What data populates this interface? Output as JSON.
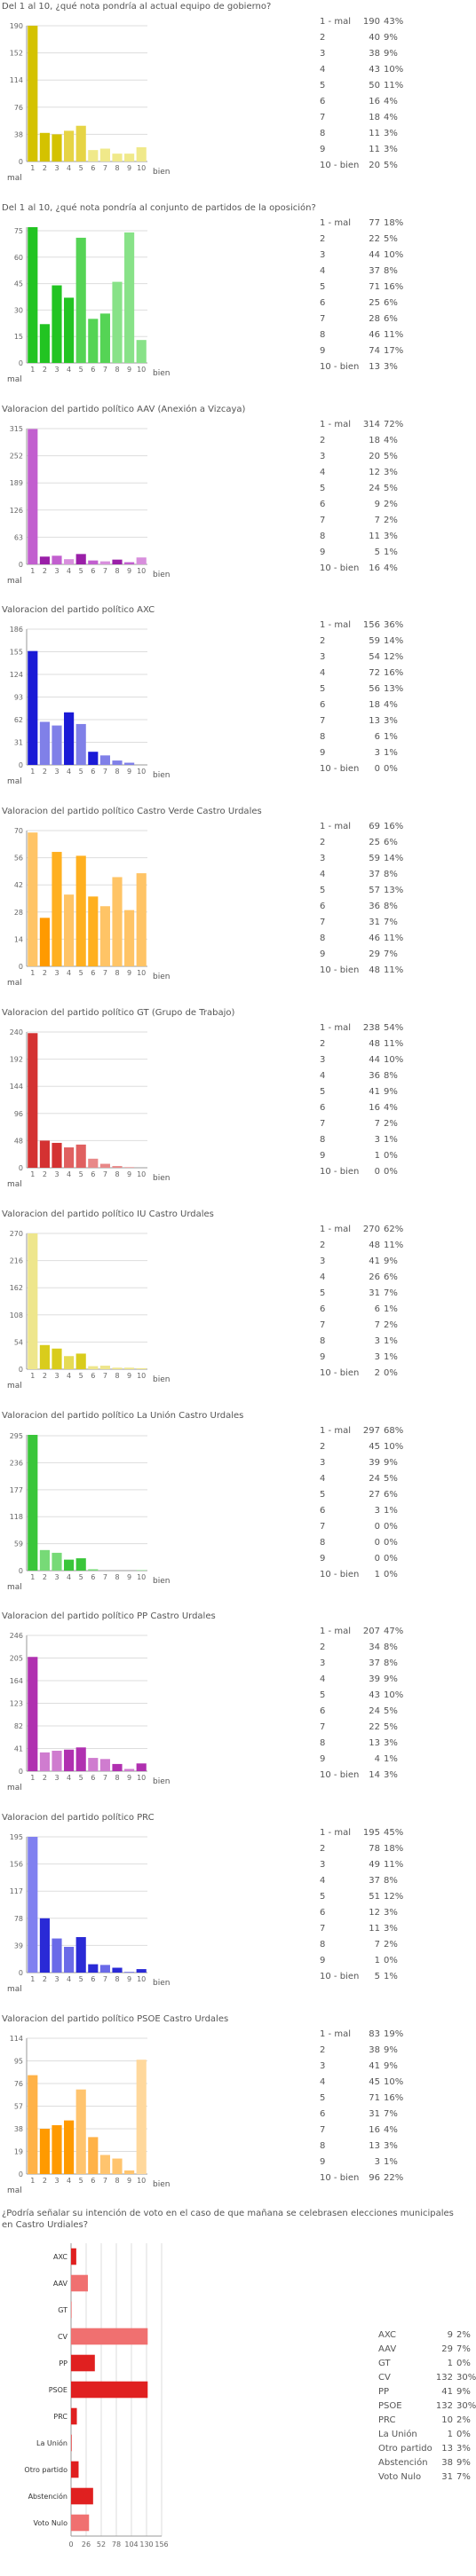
{
  "common": {
    "mal_label": "mal",
    "bien_label": "bien",
    "stat_labels": [
      "1 -  mal",
      "2",
      "3",
      "4",
      "5",
      "6",
      "7",
      "8",
      "9",
      "10 - bien"
    ]
  },
  "chart_data": [
    {
      "type": "bar",
      "title": "Del 1 al 10, ¿qué nota pondría al actual equipo de gobierno?",
      "categories": [
        "1",
        "2",
        "3",
        "4",
        "5",
        "6",
        "7",
        "8",
        "9",
        "10"
      ],
      "values": [
        190,
        40,
        38,
        43,
        50,
        16,
        18,
        11,
        11,
        20
      ],
      "percents": [
        "43%",
        "9%",
        "9%",
        "10%",
        "11%",
        "4%",
        "4%",
        "3%",
        "3%",
        "5%"
      ],
      "yticks": [
        0,
        38,
        76,
        114,
        152,
        190
      ],
      "ylim": [
        0,
        190
      ],
      "colors": [
        "#d4c200",
        "#d4c200",
        "#d4c200",
        "#e6d445",
        "#e6d445",
        "#f0e98a",
        "#f0e98a",
        "#f0e98a",
        "#f0e98a",
        "#f0e98a"
      ]
    },
    {
      "type": "bar",
      "title": "Del 1 al 10, ¿qué nota pondría al conjunto de partidos de la oposición?",
      "categories": [
        "1",
        "2",
        "3",
        "4",
        "5",
        "6",
        "7",
        "8",
        "9",
        "10"
      ],
      "values": [
        77,
        22,
        44,
        37,
        71,
        25,
        28,
        46,
        74,
        13
      ],
      "percents": [
        "18%",
        "5%",
        "10%",
        "8%",
        "16%",
        "6%",
        "6%",
        "11%",
        "17%",
        "3%"
      ],
      "yticks": [
        0,
        15,
        30,
        45,
        60,
        75
      ],
      "ylim": [
        0,
        77
      ],
      "colors": [
        "#22c422",
        "#22c422",
        "#22c422",
        "#22c422",
        "#55d455",
        "#55d455",
        "#55d455",
        "#88e288",
        "#88e288",
        "#88e288"
      ]
    },
    {
      "type": "bar",
      "title": "Valoracion del partido político AAV (Anexión a Vizcaya)",
      "categories": [
        "1",
        "2",
        "3",
        "4",
        "5",
        "6",
        "7",
        "8",
        "9",
        "10"
      ],
      "values": [
        314,
        18,
        20,
        12,
        24,
        9,
        7,
        11,
        5,
        16
      ],
      "percents": [
        "72%",
        "4%",
        "5%",
        "3%",
        "5%",
        "2%",
        "2%",
        "3%",
        "1%",
        "4%"
      ],
      "yticks": [
        0,
        63,
        126,
        189,
        252,
        315
      ],
      "ylim": [
        0,
        315
      ],
      "colors": [
        "#c25fcf",
        "#9a1fa8",
        "#c25fcf",
        "#d88fdd",
        "#9a1fa8",
        "#c25fcf",
        "#d88fdd",
        "#9a1fa8",
        "#c25fcf",
        "#d88fdd"
      ]
    },
    {
      "type": "bar",
      "title": "Valoracion del partido político AXC",
      "categories": [
        "1",
        "2",
        "3",
        "4",
        "5",
        "6",
        "7",
        "8",
        "9",
        "10"
      ],
      "values": [
        156,
        59,
        54,
        72,
        56,
        18,
        13,
        6,
        3,
        0
      ],
      "percents": [
        "36%",
        "14%",
        "12%",
        "16%",
        "13%",
        "4%",
        "3%",
        "1%",
        "1%",
        "0%"
      ],
      "yticks": [
        0,
        31,
        62,
        93,
        124,
        155,
        186
      ],
      "ylim": [
        0,
        186
      ],
      "colors": [
        "#1a1ad6",
        "#8080e8",
        "#8080e8",
        "#1a1ad6",
        "#8080e8",
        "#1a1ad6",
        "#8080e8",
        "#8080e8",
        "#8080e8",
        "#8080e8"
      ]
    },
    {
      "type": "bar",
      "title": "Valoracion del partido político Castro Verde Castro Urdales",
      "categories": [
        "1",
        "2",
        "3",
        "4",
        "5",
        "6",
        "7",
        "8",
        "9",
        "10"
      ],
      "values": [
        69,
        25,
        59,
        37,
        57,
        36,
        31,
        46,
        29,
        48
      ],
      "percents": [
        "16%",
        "6%",
        "14%",
        "8%",
        "13%",
        "8%",
        "7%",
        "11%",
        "7%",
        "11%"
      ],
      "yticks": [
        0,
        14,
        28,
        42,
        56,
        70
      ],
      "ylim": [
        0,
        70
      ],
      "colors": [
        "#ffc466",
        "#ff9a00",
        "#ffb020",
        "#ffc466",
        "#ffb020",
        "#ffb020",
        "#ffc466",
        "#ffc466",
        "#ffc466",
        "#ffc466"
      ]
    },
    {
      "type": "bar",
      "title": "Valoracion del partido político GT (Grupo de Trabajo)",
      "categories": [
        "1",
        "2",
        "3",
        "4",
        "5",
        "6",
        "7",
        "8",
        "9",
        "10"
      ],
      "values": [
        238,
        48,
        44,
        36,
        41,
        16,
        7,
        3,
        1,
        0
      ],
      "percents": [
        "54%",
        "11%",
        "10%",
        "8%",
        "9%",
        "4%",
        "2%",
        "1%",
        "0%",
        "0%"
      ],
      "yticks": [
        0,
        48,
        96,
        144,
        192,
        240
      ],
      "ylim": [
        0,
        240
      ],
      "colors": [
        "#d43232",
        "#d43232",
        "#d43232",
        "#e06060",
        "#e06060",
        "#e88888",
        "#e88888",
        "#e88888",
        "#e88888",
        "#e88888"
      ]
    },
    {
      "type": "bar",
      "title": "Valoracion del partido político IU Castro Urdales",
      "categories": [
        "1",
        "2",
        "3",
        "4",
        "5",
        "6",
        "7",
        "8",
        "9",
        "10"
      ],
      "values": [
        270,
        48,
        41,
        26,
        31,
        6,
        7,
        3,
        3,
        2
      ],
      "percents": [
        "62%",
        "11%",
        "9%",
        "6%",
        "7%",
        "1%",
        "2%",
        "1%",
        "1%",
        "0%"
      ],
      "yticks": [
        0,
        54,
        108,
        162,
        216,
        270
      ],
      "ylim": [
        0,
        270
      ],
      "colors": [
        "#eee68c",
        "#d9cc1c",
        "#d9cc1c",
        "#e6db55",
        "#d9cc1c",
        "#eee68c",
        "#eee68c",
        "#eee68c",
        "#eee68c",
        "#eee68c"
      ]
    },
    {
      "type": "bar",
      "title": "Valoracion del partido político La Unión Castro Urdales",
      "categories": [
        "1",
        "2",
        "3",
        "4",
        "5",
        "6",
        "7",
        "8",
        "9",
        "10"
      ],
      "values": [
        297,
        45,
        39,
        24,
        27,
        3,
        0,
        0,
        0,
        1
      ],
      "percents": [
        "68%",
        "10%",
        "9%",
        "5%",
        "6%",
        "1%",
        "0%",
        "0%",
        "0%",
        "0%"
      ],
      "yticks": [
        0,
        59,
        118,
        177,
        236,
        295
      ],
      "ylim": [
        0,
        297
      ],
      "colors": [
        "#3ac63a",
        "#77da77",
        "#77da77",
        "#3ac63a",
        "#3ac63a",
        "#77da77",
        "#77da77",
        "#77da77",
        "#77da77",
        "#77da77"
      ]
    },
    {
      "type": "bar",
      "title": "Valoracion del partido político PP Castro Urdales",
      "categories": [
        "1",
        "2",
        "3",
        "4",
        "5",
        "6",
        "7",
        "8",
        "9",
        "10"
      ],
      "values": [
        207,
        34,
        37,
        39,
        43,
        24,
        22,
        13,
        4,
        14
      ],
      "percents": [
        "47%",
        "8%",
        "8%",
        "9%",
        "10%",
        "5%",
        "5%",
        "3%",
        "1%",
        "3%"
      ],
      "yticks": [
        0,
        41,
        82,
        123,
        164,
        205,
        246
      ],
      "ylim": [
        0,
        246
      ],
      "colors": [
        "#b030b0",
        "#cf7ccf",
        "#cf7ccf",
        "#b030b0",
        "#b030b0",
        "#cf7ccf",
        "#cf7ccf",
        "#b030b0",
        "#cf7ccf",
        "#b030b0"
      ]
    },
    {
      "type": "bar",
      "title": "Valoracion del partido político PRC",
      "categories": [
        "1",
        "2",
        "3",
        "4",
        "5",
        "6",
        "7",
        "8",
        "9",
        "10"
      ],
      "values": [
        195,
        78,
        49,
        37,
        51,
        12,
        11,
        7,
        1,
        5
      ],
      "percents": [
        "45%",
        "18%",
        "11%",
        "8%",
        "12%",
        "3%",
        "3%",
        "2%",
        "0%",
        "1%"
      ],
      "yticks": [
        0,
        39,
        78,
        117,
        156,
        195
      ],
      "ylim": [
        0,
        195
      ],
      "colors": [
        "#8080f0",
        "#2a2ad6",
        "#6a6ae8",
        "#6a6ae8",
        "#2a2ad6",
        "#2a2ad6",
        "#6a6ae8",
        "#2a2ad6",
        "#6a6ae8",
        "#2a2ad6"
      ]
    },
    {
      "type": "bar",
      "title": "Valoracion del partido político PSOE Castro Urdales",
      "categories": [
        "1",
        "2",
        "3",
        "4",
        "5",
        "6",
        "7",
        "8",
        "9",
        "10"
      ],
      "values": [
        83,
        38,
        41,
        45,
        71,
        31,
        16,
        13,
        3,
        96
      ],
      "percents": [
        "19%",
        "9%",
        "9%",
        "10%",
        "16%",
        "7%",
        "4%",
        "3%",
        "1%",
        "22%"
      ],
      "yticks": [
        0,
        19,
        38,
        57,
        76,
        95,
        114
      ],
      "ylim": [
        0,
        114
      ],
      "colors": [
        "#ffb247",
        "#ff9a00",
        "#ff9a00",
        "#ff9a00",
        "#ffc46e",
        "#ffb247",
        "#ffc46e",
        "#ffc46e",
        "#ffc46e",
        "#ffd89c"
      ]
    },
    {
      "type": "bar",
      "orientation": "horizontal",
      "title": "¿Podría señalar su intención de voto en el caso de que mañana se celebrasen elecciones municipales en Castro Urdiales?",
      "categories": [
        "AXC",
        "AAV",
        "GT",
        "CV",
        "PP",
        "PSOE",
        "PRC",
        "La Unión",
        "Otro partido",
        "Abstención",
        "Voto Nulo"
      ],
      "values": [
        9,
        29,
        1,
        132,
        41,
        132,
        10,
        1,
        13,
        38,
        31
      ],
      "percents": [
        "2%",
        "7%",
        "0%",
        "30%",
        "9%",
        "30%",
        "2%",
        "0%",
        "3%",
        "9%",
        "7%"
      ],
      "xticks": [
        0,
        26,
        52,
        78,
        104,
        130,
        156
      ],
      "xlim": [
        0,
        156
      ],
      "colors": [
        "#e02020",
        "#f07070",
        "#f07070",
        "#f07070",
        "#e02020",
        "#e02020",
        "#e02020",
        "#e02020",
        "#e02020",
        "#e02020",
        "#f07070"
      ]
    }
  ]
}
